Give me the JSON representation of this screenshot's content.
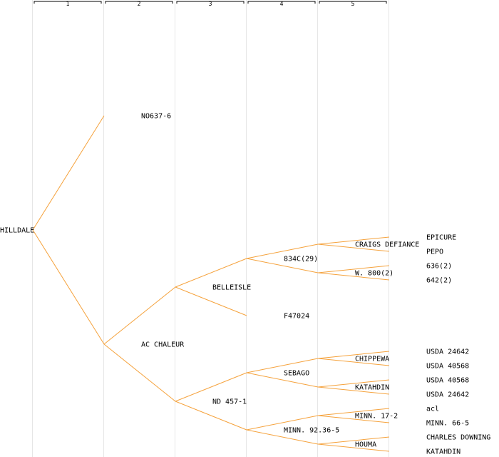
{
  "generations": [
    "1",
    "2",
    "3",
    "4",
    "5"
  ],
  "colors": {
    "edge": "#f5a23c",
    "rule": "#e6e6e6",
    "text": "#000000"
  },
  "nodes": [
    {
      "id": "hilldale",
      "label": "HILLDALE",
      "gen": 0,
      "row": 16
    },
    {
      "id": "no637",
      "label": "NO637-6",
      "gen": 1,
      "row": 8,
      "parent": "hilldale"
    },
    {
      "id": "acchaleur",
      "label": "AC CHALEUR",
      "gen": 1,
      "row": 24,
      "parent": "hilldale"
    },
    {
      "id": "belleisle",
      "label": "BELLEISLE",
      "gen": 2,
      "row": 20,
      "parent": "acchaleur"
    },
    {
      "id": "nd457",
      "label": "ND 457-1",
      "gen": 2,
      "row": 28,
      "parent": "acchaleur"
    },
    {
      "id": "834c",
      "label": "834C(29)",
      "gen": 3,
      "row": 18,
      "parent": "belleisle"
    },
    {
      "id": "f47024",
      "label": "F47024",
      "gen": 3,
      "row": 22,
      "parent": "belleisle"
    },
    {
      "id": "sebago",
      "label": "SEBAGO",
      "gen": 3,
      "row": 26,
      "parent": "nd457"
    },
    {
      "id": "minn9236",
      "label": "MINN. 92.36-5",
      "gen": 3,
      "row": 30,
      "parent": "nd457"
    },
    {
      "id": "craigs",
      "label": "CRAIGS DEFIANCE",
      "gen": 4,
      "row": 17,
      "parent": "834c"
    },
    {
      "id": "w800",
      "label": "W. 800(2)",
      "gen": 4,
      "row": 19,
      "parent": "834c"
    },
    {
      "id": "chippewa",
      "label": "CHIPPEWA",
      "gen": 4,
      "row": 25,
      "parent": "sebago"
    },
    {
      "id": "katahdin1",
      "label": "KATAHDIN",
      "gen": 4,
      "row": 27,
      "parent": "sebago"
    },
    {
      "id": "minn172",
      "label": "MINN. 17-2",
      "gen": 4,
      "row": 29,
      "parent": "minn9236"
    },
    {
      "id": "houma",
      "label": "HOUMA",
      "gen": 4,
      "row": 31,
      "parent": "minn9236"
    },
    {
      "id": "epicure",
      "label": "EPICURE",
      "gen": 5,
      "row": 16.5,
      "parent": "craigs"
    },
    {
      "id": "pepo",
      "label": "PEPO",
      "gen": 5,
      "row": 17.5,
      "parent": "craigs"
    },
    {
      "id": "636",
      "label": "636(2)",
      "gen": 5,
      "row": 18.5,
      "parent": "w800"
    },
    {
      "id": "642",
      "label": "642(2)",
      "gen": 5,
      "row": 19.5,
      "parent": "w800"
    },
    {
      "id": "usda24642a",
      "label": "USDA 24642",
      "gen": 5,
      "row": 24.5,
      "parent": "chippewa"
    },
    {
      "id": "usda40568a",
      "label": "USDA 40568",
      "gen": 5,
      "row": 25.5,
      "parent": "chippewa"
    },
    {
      "id": "usda40568b",
      "label": "USDA 40568",
      "gen": 5,
      "row": 26.5,
      "parent": "katahdin1"
    },
    {
      "id": "usda24642b",
      "label": "USDA 24642",
      "gen": 5,
      "row": 27.5,
      "parent": "katahdin1"
    },
    {
      "id": "acl",
      "label": "acl",
      "gen": 5,
      "row": 28.5,
      "parent": "minn172"
    },
    {
      "id": "minn665",
      "label": "MINN. 66-5",
      "gen": 5,
      "row": 29.5,
      "parent": "minn172"
    },
    {
      "id": "charles",
      "label": "CHARLES DOWNING",
      "gen": 5,
      "row": 30.5,
      "parent": "houma"
    },
    {
      "id": "katahdin2",
      "label": "KATAHDIN",
      "gen": 5,
      "row": 31.5,
      "parent": "houma"
    }
  ]
}
